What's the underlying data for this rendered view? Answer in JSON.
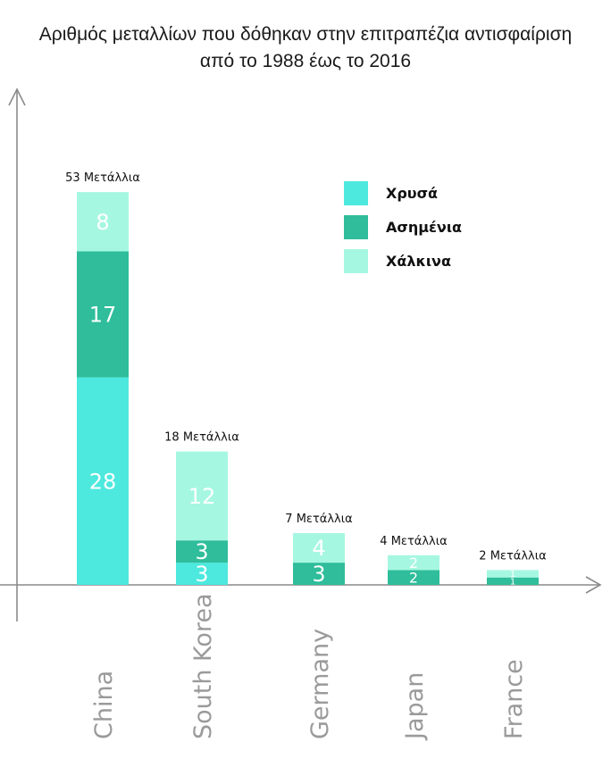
{
  "title_lines": [
    "Αριθμός μεταλλίων που δόθηκαν στην επιτραπέζια αντισφαίριση",
    "από το 1988 έως το 2016"
  ],
  "colors": {
    "gold": "#4de8de",
    "silver": "#2fbd9b",
    "bronze": "#a6f7e1",
    "axis": "#8a8a8a",
    "category_text": "#9a9a9a"
  },
  "chart_data": {
    "type": "bar",
    "stacked": true,
    "title": "Αριθμός μεταλλίων που δόθηκαν στην επιτραπέζια αντισφαίριση από το 1988 έως το 2016",
    "xlabel": "",
    "ylabel": "",
    "categories": [
      "China",
      "South Korea",
      "Germany",
      "Japan",
      "France"
    ],
    "series": [
      {
        "name": "Χρυσά",
        "color": "#4de8de",
        "values": [
          28,
          3,
          0,
          0,
          0
        ]
      },
      {
        "name": "Ασημένια",
        "color": "#2fbd9b",
        "values": [
          17,
          3,
          3,
          2,
          1
        ]
      },
      {
        "name": "Χάλκινα",
        "color": "#a6f7e1",
        "values": [
          8,
          12,
          4,
          2,
          1
        ]
      }
    ],
    "totals": [
      53,
      18,
      7,
      4,
      2
    ],
    "total_labels": [
      "53 Μετάλλια",
      "18 Μετάλλια",
      "7 Μετάλλια",
      "4 Μετάλλια",
      "2 Μετάλλια"
    ],
    "segment_labels": [
      [
        "28",
        "17",
        "8"
      ],
      [
        "3",
        "3",
        "12"
      ],
      [
        "",
        "3",
        "4"
      ],
      [
        "",
        "2",
        "2"
      ],
      [
        "",
        "1",
        "1"
      ]
    ],
    "legend_position": "top-right",
    "grid": false,
    "category_label_rotation": -90
  }
}
